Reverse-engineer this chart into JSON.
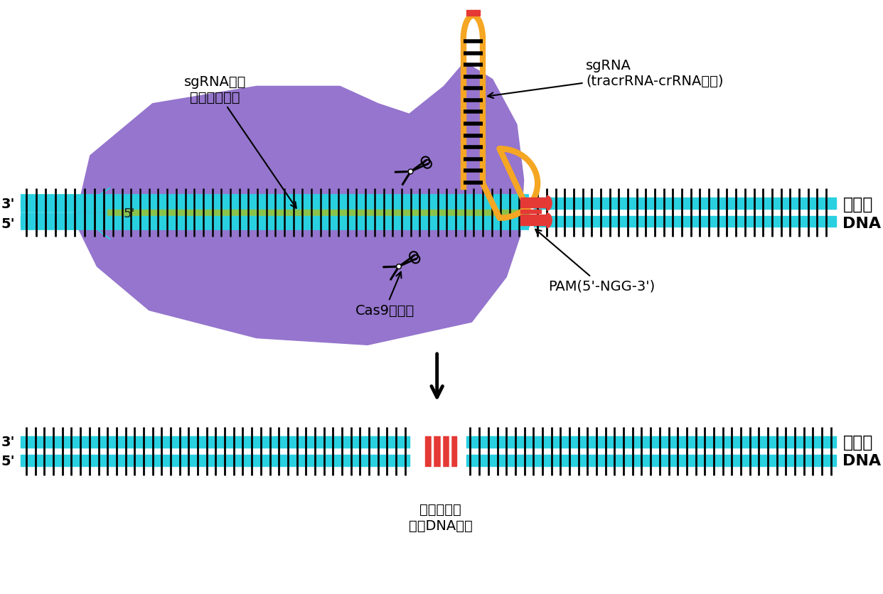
{
  "bg_color": "#ffffff",
  "cas9_color": "#9575cd",
  "cas9_highlight": "#b39ddb",
  "cyan_color": "#29d0e0",
  "green_color": "#8bc34a",
  "orange_color": "#ffcc80",
  "orange_stem": "#f5a623",
  "red_color": "#e53935",
  "black_color": "#111111",
  "label_genomeDNA1": "基因组",
  "label_genomeDNA2": "DNA",
  "label_sgRNA": "sgRNA\n(tracrRNA-crRNA融合)",
  "label_sgRNA_target1": "sgRNA识别",
  "label_sgRNA_target2": "基因组靶序列",
  "label_Cas9": "Cas9核酸酶",
  "label_PAM": "PAM(5'-NGG-3')",
  "label_result1": "位点特异的",
  "label_result2": "双铴DNA断裂",
  "label_3p": "3'",
  "label_5p": "5'"
}
